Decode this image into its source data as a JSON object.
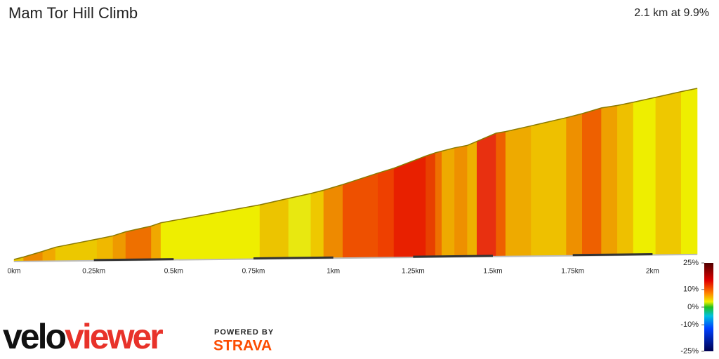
{
  "chart_data": {
    "type": "gradient-profile",
    "title": "Mam Tor Hill Climb",
    "subtitle": "2.1 km at 9.9%",
    "x": [
      0,
      0.03,
      0.09,
      0.13,
      0.26,
      0.31,
      0.35,
      0.43,
      0.46,
      0.77,
      0.86,
      0.93,
      0.97,
      1.03,
      1.14,
      1.19,
      1.29,
      1.32,
      1.34,
      1.38,
      1.42,
      1.45,
      1.51,
      1.54,
      1.62,
      1.73,
      1.78,
      1.84,
      1.89,
      1.94,
      2.01,
      2.09,
      2.14
    ],
    "values": [
      0,
      3,
      10,
      15,
      25,
      29,
      34,
      41,
      45,
      67,
      75,
      81,
      85,
      92,
      106,
      112,
      127,
      131,
      133,
      137,
      140,
      145,
      155,
      157,
      164,
      174,
      179,
      186,
      189,
      193,
      199,
      206,
      210
    ],
    "segment_colors": [
      "#e8c400",
      "#ec8a00",
      "#f0a800",
      "#ecc800",
      "#f0b800",
      "#ee9a00",
      "#ee7000",
      "#f0a800",
      "#eeee00",
      "#ecc400",
      "#e8e810",
      "#eec800",
      "#ee8a00",
      "#ee5000",
      "#ee4000",
      "#e82000",
      "#e84000",
      "#ee7000",
      "#eeaa00",
      "#ee9000",
      "#eeb000",
      "#e83010",
      "#ee6000",
      "#eeaa00",
      "#eec000",
      "#ee9000",
      "#ee6000",
      "#eea000",
      "#eec000",
      "#eeee00",
      "#eec800",
      "#eeee00"
    ],
    "outline_color": "#8a7a00",
    "xlim": [
      0,
      2.14
    ],
    "xticks": [
      {
        "value": 0,
        "label": "0km"
      },
      {
        "value": 0.25,
        "label": "0.25km"
      },
      {
        "value": 0.5,
        "label": "0.5km"
      },
      {
        "value": 0.75,
        "label": "0.75km"
      },
      {
        "value": 1,
        "label": "1km"
      },
      {
        "value": 1.25,
        "label": "1.25km"
      },
      {
        "value": 1.5,
        "label": "1.5km"
      },
      {
        "value": 1.75,
        "label": "1.75km"
      },
      {
        "value": 2,
        "label": "2km"
      }
    ],
    "colorbar": {
      "lim": [
        -25,
        25
      ],
      "ticks": [
        {
          "value": 25,
          "label": "25%"
        },
        {
          "value": 10,
          "label": "10%"
        },
        {
          "value": 0,
          "label": "0%"
        },
        {
          "value": -10,
          "label": "-10%"
        },
        {
          "value": -25,
          "label": "-25%"
        }
      ],
      "stops": [
        {
          "value": 25,
          "color": "#500000"
        },
        {
          "value": 15,
          "color": "#e00000"
        },
        {
          "value": 8,
          "color": "#ff8000"
        },
        {
          "value": 3,
          "color": "#f0f000"
        },
        {
          "value": 0,
          "color": "#20c020"
        },
        {
          "value": -5,
          "color": "#00c0e0"
        },
        {
          "value": -12,
          "color": "#0040ff"
        },
        {
          "value": -25,
          "color": "#000050"
        }
      ]
    },
    "logo": {
      "part1": "velo",
      "part2": "viewer",
      "powered_by": "POWERED BY",
      "provider": "STRAVA"
    }
  }
}
